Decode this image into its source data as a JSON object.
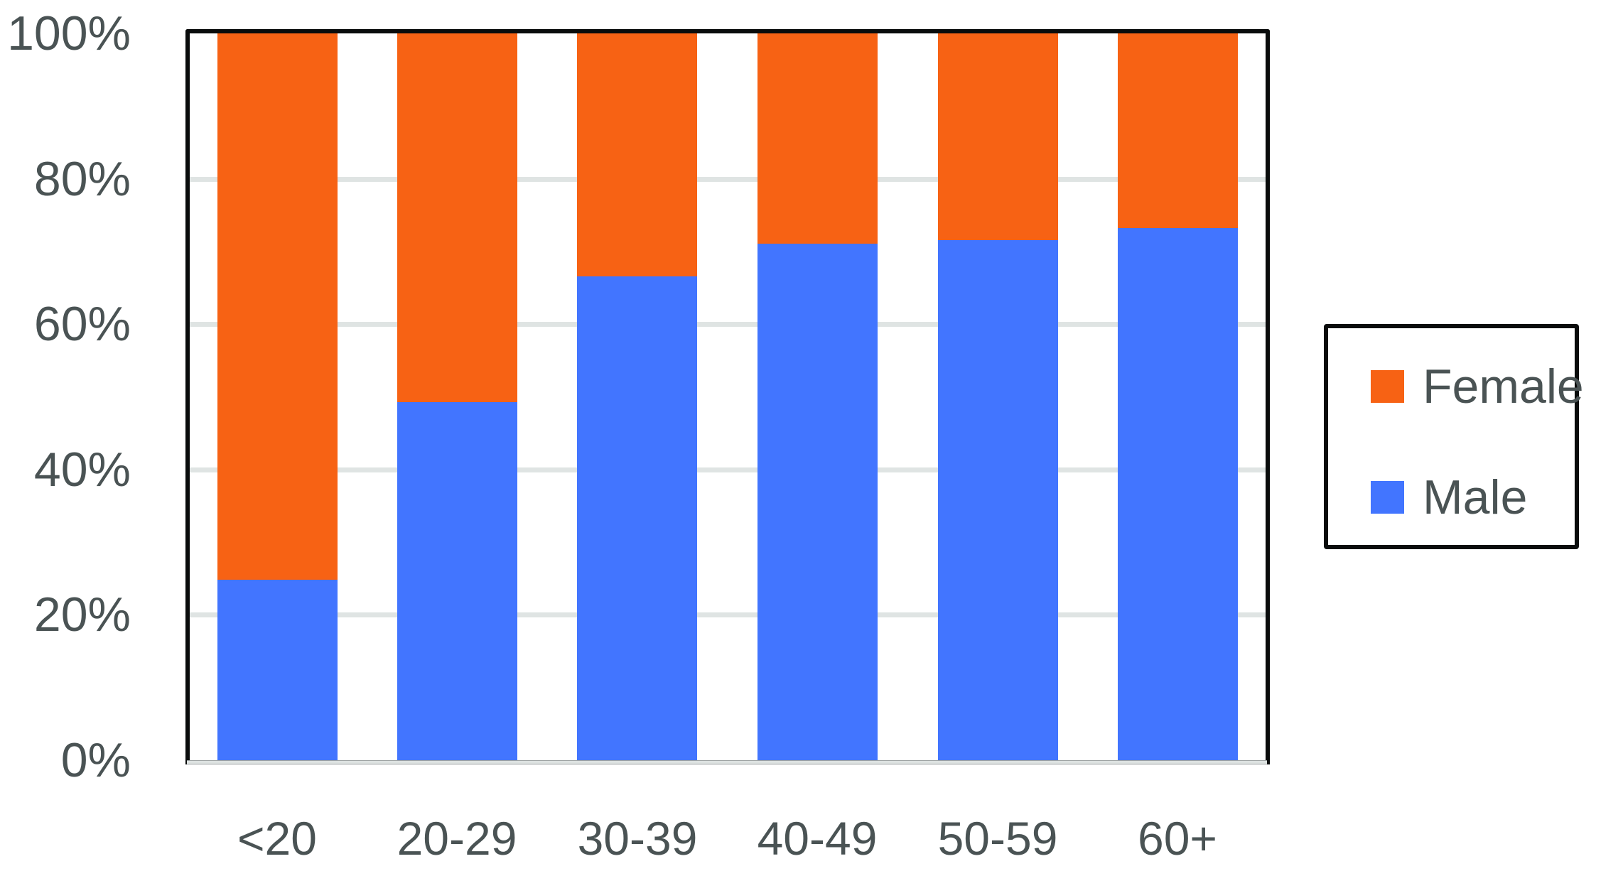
{
  "chart_data": {
    "type": "bar",
    "stacked": true,
    "normalized_percent": true,
    "title": "",
    "xlabel": "",
    "ylabel": "",
    "categories": [
      "<20",
      "20-29",
      "30-39",
      "40-49",
      "50-59",
      "60+"
    ],
    "series": [
      {
        "name": "Male",
        "color": "#4275ff",
        "values": [
          24.8,
          49.3,
          66.6,
          71.1,
          71.6,
          73.2
        ]
      },
      {
        "name": "Female",
        "color": "#f76214",
        "values": [
          75.2,
          50.7,
          33.4,
          28.9,
          28.4,
          26.8
        ]
      }
    ],
    "ylim": [
      0,
      100
    ],
    "yticks": [
      "0%",
      "20%",
      "40%",
      "60%",
      "80%",
      "100%"
    ],
    "grid": true,
    "legend": {
      "position": "right",
      "entries": [
        "Female",
        "Male"
      ]
    }
  },
  "axis": {
    "y_ticks": [
      {
        "label": "100%",
        "value": 100
      },
      {
        "label": "80%",
        "value": 80
      },
      {
        "label": "60%",
        "value": 60
      },
      {
        "label": "40%",
        "value": 40
      },
      {
        "label": "20%",
        "value": 20
      },
      {
        "label": "0%",
        "value": 0
      }
    ],
    "x_labels": [
      "<20",
      "20-29",
      "30-39",
      "40-49",
      "50-59",
      "60+"
    ]
  },
  "legend": {
    "items": [
      {
        "label": "Female",
        "color": "#f76214"
      },
      {
        "label": "Male",
        "color": "#4275ff"
      }
    ]
  },
  "colors": {
    "female": "#f76214",
    "male": "#4275ff",
    "text": "#4a5354",
    "grid": "#dfe4e3",
    "frame": "#0a0c0c"
  }
}
